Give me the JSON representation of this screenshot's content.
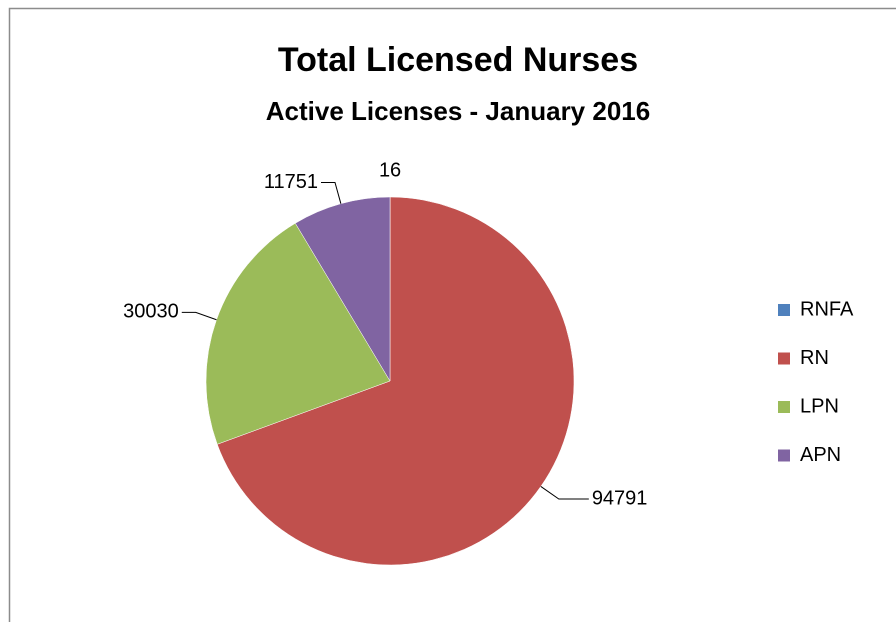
{
  "chart_data": {
    "type": "pie",
    "title": "Total Licensed Nurses",
    "subtitle": "Active Licenses - January 2016",
    "categories": [
      "RNFA",
      "RN",
      "LPN",
      "APN"
    ],
    "values": [
      16,
      94791,
      30030,
      11751
    ],
    "colors": [
      "#4f81bd",
      "#c0504d",
      "#9bbb59",
      "#8064a2"
    ],
    "legend": "right"
  }
}
